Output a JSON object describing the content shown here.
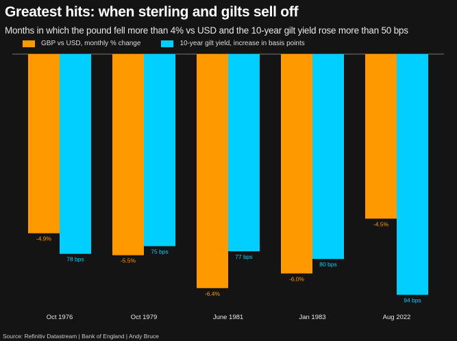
{
  "colors": {
    "gbp": "#ff9900",
    "gilt": "#00cfff",
    "background": "#141414"
  },
  "chart_data": {
    "type": "bar",
    "title": "Greatest hits: when sterling and gilts sell off",
    "subtitle": "Months in which the pound fell more than 4% vs USD and the 10-year gilt yield rose more than 50 bps",
    "categories": [
      "Oct 1976",
      "Oct 1979",
      "June 1981",
      "Jan 1983",
      "Aug 2022"
    ],
    "series": [
      {
        "name": "GBP vs USD, monthly % change",
        "values": [
          -4.9,
          -5.5,
          -6.4,
          -6.0,
          -4.5
        ],
        "labels": [
          "-4.9%",
          "-5.5%",
          "-6.4%",
          "-6.0%",
          "-4.5%"
        ]
      },
      {
        "name": "10-year gilt yield, increase in basis points",
        "values": [
          78,
          75,
          77,
          80,
          94
        ],
        "labels": [
          "78 bps",
          "75 bps",
          "77 bps",
          "80 bps",
          "94 bps"
        ]
      }
    ],
    "legend": "top-left",
    "grid": false
  },
  "source": "Source: Refinitiv Datastream | Bank of England | Andy Bruce"
}
